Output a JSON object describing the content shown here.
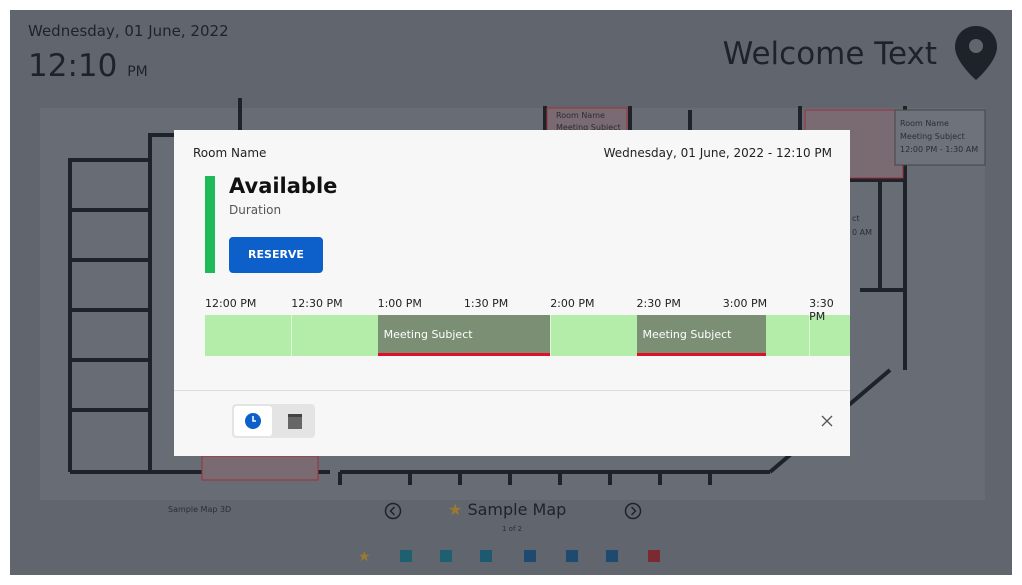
{
  "header": {
    "date": "Wednesday, 01 June, 2022",
    "time": "12:10",
    "ampm": "PM",
    "welcome": "Welcome Text"
  },
  "map": {
    "room_card": {
      "room": "Room Name",
      "subject": "Meeting Subject",
      "time": "12:00 PM - 1:30 AM"
    },
    "top_room": {
      "room": "Room Name",
      "subject": "Meeting Subject"
    },
    "partial": [
      "ct",
      "0 AM"
    ]
  },
  "footer": {
    "map_3d": "Sample Map 3D",
    "map_name": "Sample Map",
    "page": "1 of 2"
  },
  "modal": {
    "room": "Room Name",
    "datetime": "Wednesday, 01 June, 2022 - 12:10 PM",
    "status": "Available",
    "duration": "Duration",
    "button": "RESERVE",
    "timeline": {
      "ticks": [
        "12:00 PM",
        "12:30 PM",
        "1:00 PM",
        "1:30 PM",
        "2:00 PM",
        "2:30 PM",
        "3:00 PM",
        "3:30 PM"
      ],
      "meetings": [
        "Meeting Subject",
        "Meeting Subject"
      ]
    }
  }
}
